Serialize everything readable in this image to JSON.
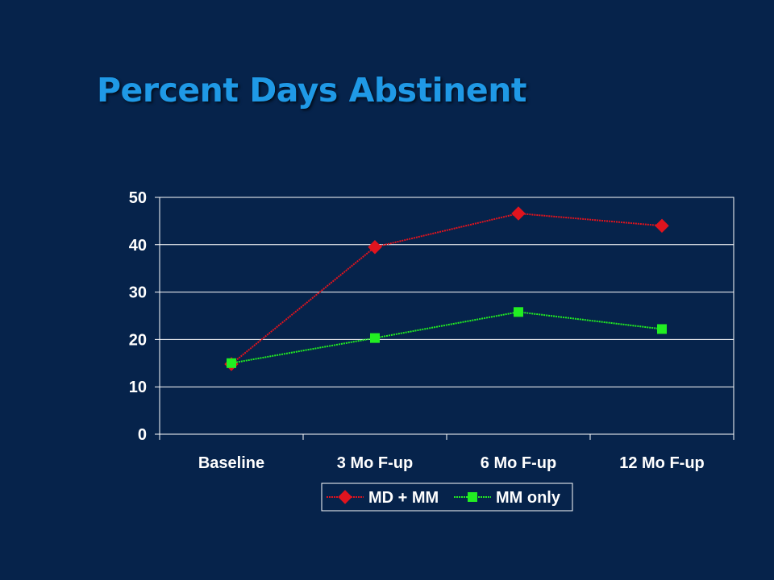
{
  "slide": {
    "title": "Percent Days Abstinent",
    "background_color": "#06234b",
    "title_color": "#1f99e6"
  },
  "chart_data": {
    "type": "line",
    "title": "",
    "xlabel": "",
    "ylabel": "",
    "categories": [
      "Baseline",
      "3 Mo F-up",
      "6 Mo F-up",
      "12 Mo F-up"
    ],
    "ylim": [
      0,
      50
    ],
    "yticks": [
      0,
      10,
      20,
      30,
      40,
      50
    ],
    "grid": true,
    "legend_position": "bottom",
    "series": [
      {
        "name": "MD + MM",
        "values": [
          14.8,
          39.5,
          46.6,
          44.0
        ],
        "color": "#e0141e",
        "marker": "diamond"
      },
      {
        "name": "MM only",
        "values": [
          15.0,
          20.3,
          25.8,
          22.2
        ],
        "color": "#22ee22",
        "marker": "square"
      }
    ]
  }
}
